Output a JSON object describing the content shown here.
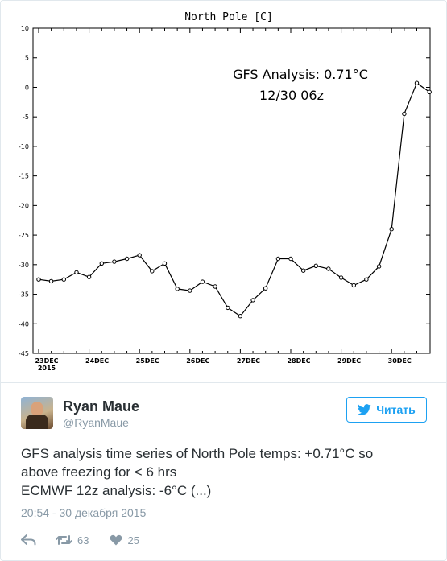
{
  "colors": {
    "accent": "#1da1f2",
    "text": "#292f33",
    "muted": "#8899a6",
    "border": "#e1e8ed"
  },
  "chart_data": {
    "type": "line",
    "title": "North Pole [C]",
    "annotation_lines": [
      "GFS Analysis:  0.71°C",
      "12/30 06z"
    ],
    "ylim": [
      -45,
      10
    ],
    "yticks": [
      10,
      5,
      0,
      -5,
      -10,
      -15,
      -20,
      -25,
      -30,
      -35,
      -40,
      -45
    ],
    "xlim": [
      0,
      7.5
    ],
    "xticks": [
      {
        "x": 0,
        "label": "23DEC",
        "sublabel": "2015"
      },
      {
        "x": 1,
        "label": "24DEC",
        "sublabel": ""
      },
      {
        "x": 2,
        "label": "25DEC",
        "sublabel": ""
      },
      {
        "x": 3,
        "label": "26DEC",
        "sublabel": ""
      },
      {
        "x": 4,
        "label": "27DEC",
        "sublabel": ""
      },
      {
        "x": 5,
        "label": "28DEC",
        "sublabel": ""
      },
      {
        "x": 6,
        "label": "29DEC",
        "sublabel": ""
      },
      {
        "x": 7,
        "label": "30DEC",
        "sublabel": ""
      }
    ],
    "x_step_days": 0.25,
    "values": [
      -32.5,
      -32.8,
      -32.5,
      -31.3,
      -32.1,
      -29.8,
      -29.5,
      -29.0,
      -28.4,
      -31.1,
      -29.8,
      -34.1,
      -34.4,
      -32.9,
      -33.7,
      -37.3,
      -38.7,
      -36.0,
      -34.0,
      -29.0,
      -29.0,
      -31.0,
      -30.2,
      -30.7,
      -32.2,
      -33.5,
      -32.5,
      -30.3,
      -24.0,
      -4.5,
      0.71,
      -0.8
    ]
  },
  "tweet": {
    "name": "Ryan Maue",
    "handle": "@RyanMaue",
    "follow_label": "Читать",
    "text_lines": [
      "GFS analysis time series of North Pole temps: +0.71°C so",
      "above freezing for < 6 hrs",
      "ECMWF 12z analysis: -6°C (...)"
    ],
    "timestamp": "20:54 - 30 декабря 2015",
    "retweets": "63",
    "likes": "25"
  },
  "icons": {
    "follow": "twitter-bird-icon",
    "reply": "reply-icon",
    "retweet": "retweet-icon",
    "like": "heart-icon"
  }
}
